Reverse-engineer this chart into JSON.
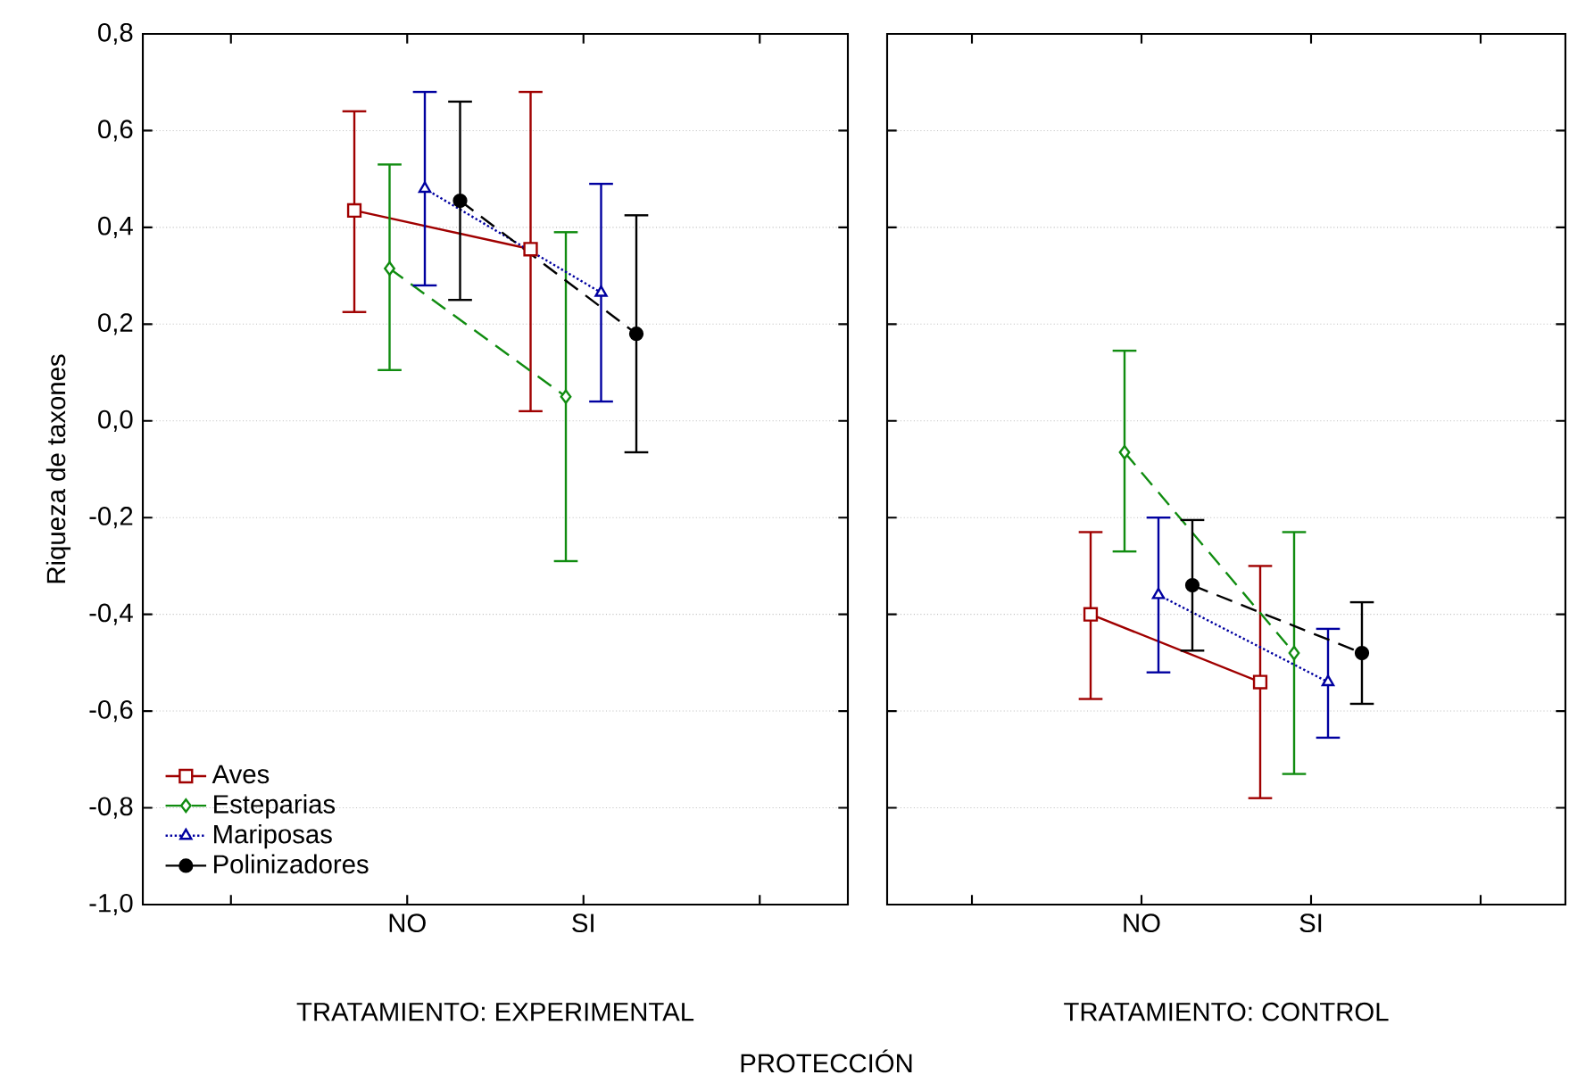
{
  "chart_data": [
    {
      "type": "line",
      "ylabel": "Riqueza de taxones",
      "xlabel": "TRATAMIENTO: EXPERIMENTAL",
      "categories": [
        "NO",
        "SI"
      ],
      "ylim": [
        -1.0,
        0.8
      ],
      "yticks": [
        {
          "value": -1.0,
          "label": "-1,0"
        },
        {
          "value": -0.8,
          "label": "-0,8"
        },
        {
          "value": -0.6,
          "label": "-0,6"
        },
        {
          "value": -0.4,
          "label": "-0,4"
        },
        {
          "value": -0.2,
          "label": "-0,2"
        },
        {
          "value": 0.0,
          "label": "0,0"
        },
        {
          "value": 0.2,
          "label": "0,2"
        },
        {
          "value": 0.4,
          "label": "0,4"
        },
        {
          "value": 0.6,
          "label": "0,6"
        },
        {
          "value": 0.8,
          "label": "0,8"
        }
      ],
      "grid": "y",
      "legend": "bottom left",
      "series": [
        {
          "name": "Aves",
          "color": "#a00000",
          "marker": "square",
          "line_style": "solid",
          "values": [
            0.435,
            0.355
          ],
          "errors": [
            [
              0.225,
              0.64
            ],
            [
              0.02,
              0.68
            ]
          ]
        },
        {
          "name": "Esteparias",
          "color": "#108c10",
          "marker": "diamond",
          "line_style": "dashed",
          "values": [
            0.315,
            0.05
          ],
          "errors": [
            [
              0.105,
              0.53
            ],
            [
              -0.29,
              0.39
            ]
          ]
        },
        {
          "name": "Mariposas",
          "color": "#0000a0",
          "marker": "triangle",
          "line_style": "dotted",
          "values": [
            0.48,
            0.265
          ],
          "errors": [
            [
              0.28,
              0.68
            ],
            [
              0.04,
              0.49
            ]
          ]
        },
        {
          "name": "Polinizadores",
          "color": "#000000",
          "marker": "circle",
          "line_style": "dashed",
          "values": [
            0.455,
            0.18
          ],
          "errors": [
            [
              0.25,
              0.66
            ],
            [
              -0.065,
              0.425
            ]
          ]
        }
      ],
      "annotations": [
        "PROTECCIÓN"
      ]
    },
    {
      "type": "line",
      "xlabel": "TRATAMIENTO: CONTROL",
      "categories": [
        "NO",
        "SI"
      ],
      "tick_labels": "x",
      "ylim": [
        -1.0,
        0.8
      ],
      "yticks": [
        -1.0,
        -0.8,
        -0.6,
        -0.4,
        -0.2,
        0.0,
        0.2,
        0.4,
        0.6,
        0.8
      ],
      "grid": "y",
      "series": [
        {
          "color": "#a00000",
          "marker": "square",
          "line_style": "solid",
          "values": [
            -0.4,
            -0.54
          ],
          "errors": [
            [
              -0.575,
              -0.23
            ],
            [
              -0.78,
              -0.3
            ]
          ]
        },
        {
          "color": "#108c10",
          "marker": "diamond",
          "line_style": "dashed",
          "values": [
            -0.065,
            -0.48
          ],
          "errors": [
            [
              -0.27,
              0.145
            ],
            [
              -0.73,
              -0.23
            ]
          ]
        },
        {
          "color": "#0000a0",
          "marker": "triangle",
          "line_style": "dotted",
          "values": [
            -0.36,
            -0.54
          ],
          "errors": [
            [
              -0.52,
              -0.2
            ],
            [
              -0.655,
              -0.43
            ]
          ]
        },
        {
          "color": "#000000",
          "marker": "circle",
          "line_style": "dashed",
          "values": [
            -0.34,
            -0.48
          ],
          "errors": [
            [
              -0.475,
              -0.205
            ],
            [
              -0.585,
              -0.375
            ]
          ]
        }
      ]
    }
  ]
}
